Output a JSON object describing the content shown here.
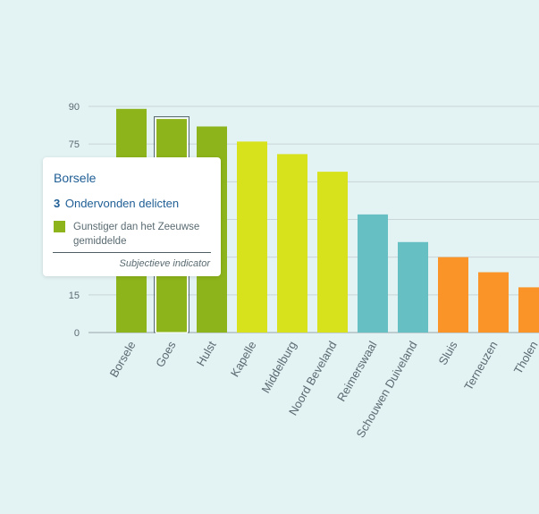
{
  "colors": {
    "background": "#e3f2f3",
    "grid": "#c9d5d8",
    "axis": "#9aa7ab",
    "green": "#8db41b",
    "yellow": "#d7e21d",
    "teal": "#66bfc3",
    "orange": "#fb9428",
    "selection": "#5c6b70"
  },
  "chart_data": {
    "type": "bar",
    "categories": [
      "Borsele",
      "Goes",
      "Hulst",
      "Kapelle",
      "Middelburg",
      "Noord Beveland",
      "Reimerswaal",
      "Schouwen Duiveland",
      "Sluis",
      "Terneuzen",
      "Tholen"
    ],
    "values": [
      89,
      85,
      82,
      76,
      71,
      64,
      47,
      36,
      30,
      24,
      18
    ],
    "bar_colors": [
      "green",
      "green",
      "green",
      "yellow",
      "yellow",
      "yellow",
      "teal",
      "teal",
      "orange",
      "orange",
      "orange"
    ],
    "selected_index": 1,
    "yticks": [
      0,
      15,
      30,
      45,
      60,
      75,
      90
    ],
    "ylim": [
      0,
      90
    ],
    "grid": true
  },
  "tooltip": {
    "title": "Borsele",
    "value": "3",
    "metric": "Ondervonden delicten",
    "legend_text": "Gunstiger dan het Zeeuwse gemiddelde",
    "legend_color": "green",
    "footer": "Subjectieve indicator"
  }
}
